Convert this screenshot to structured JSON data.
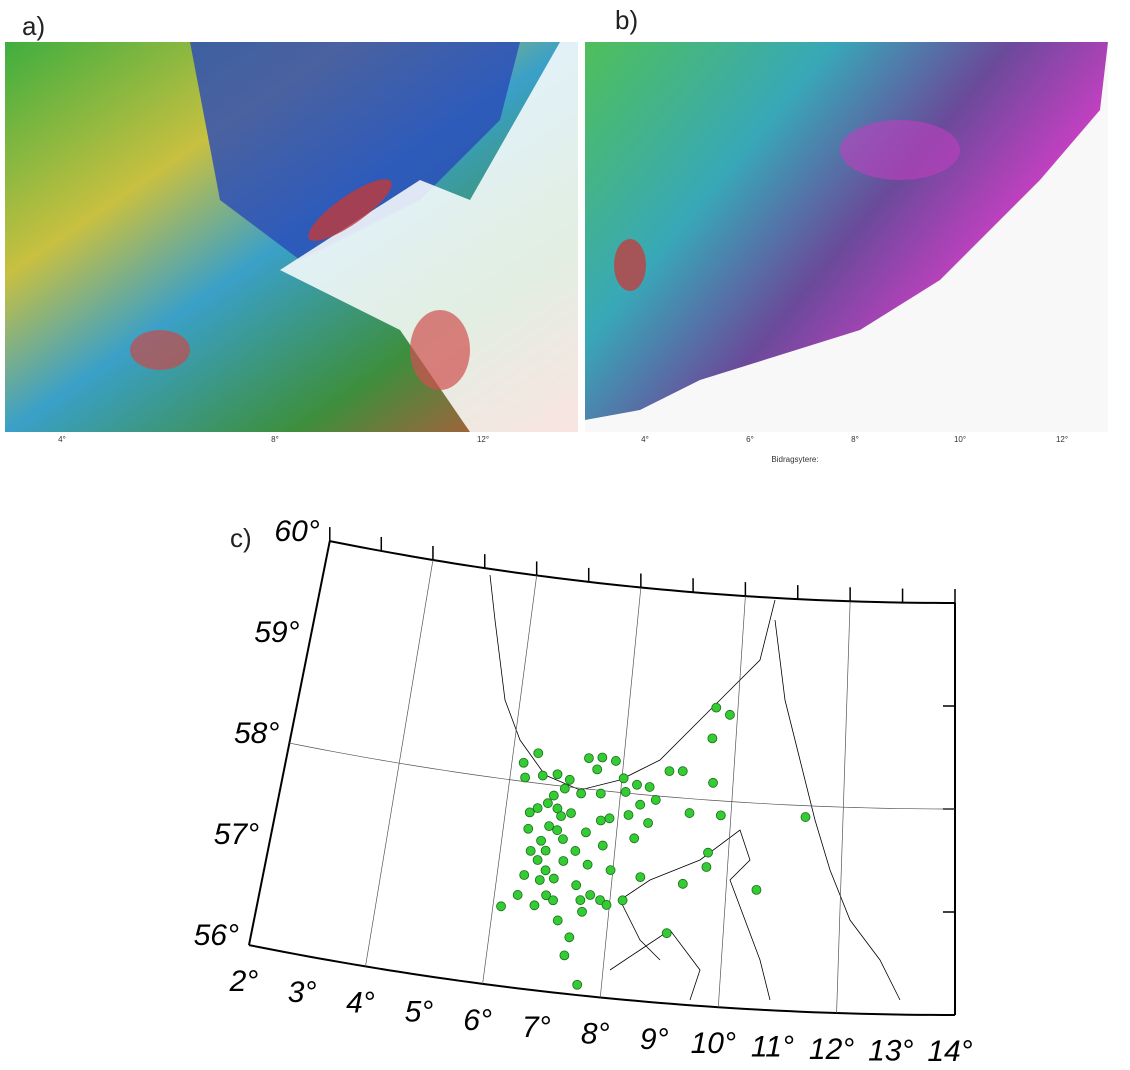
{
  "panels": [
    {
      "label": "a)",
      "ticks": [
        "4°",
        "8°",
        "12°"
      ]
    },
    {
      "label": "b)",
      "ticks": [
        "4°",
        "6°",
        "8°",
        "10°",
        "12°"
      ],
      "caption": "Bidragsytere:"
    }
  ],
  "chart_data": {
    "type": "scatter",
    "panel_label": "c)",
    "color": "#33cc33",
    "x": [
      6.45,
      6.21,
      6.27,
      6.58,
      6.84,
      7.37,
      7.61,
      7.54,
      7.86,
      8.03,
      7.07,
      7.0,
      6.82,
      7.3,
      7.65,
      8.09,
      8.28,
      8.51,
      8.84,
      9.08,
      8.64,
      8.37,
      6.43,
      6.73,
      6.91,
      6.99,
      6.8,
      6.95,
      7.07,
      6.69,
      6.44,
      6.79,
      6.67,
      6.83,
      6.99,
      6.75,
      7.12,
      7.31,
      7.46,
      7.7,
      7.85,
      8.18,
      8.54,
      8.32,
      7.78,
      7.55,
      6.89,
      6.71,
      6.4,
      6.14,
      7.02,
      7.39,
      7.65,
      7.83,
      8.22,
      8.49,
      9.24,
      9.63,
      9.64,
      9.26,
      9.82,
      9.57,
      9.6,
      9.86,
      9.64,
      7.96,
      9.03,
      7.37,
      7.32,
      7.59,
      10.53,
      11.33,
      6.53,
      6.47,
      7.54,
      7.95,
      7.14,
      7.49,
      6.56,
      7.16
    ],
    "values": [
      58.29,
      58.18,
      58.04,
      58.08,
      58.11,
      58.3,
      58.32,
      58.2,
      58.3,
      58.14,
      58.07,
      57.98,
      57.9,
      57.95,
      57.97,
      58.01,
      58.09,
      58.08,
      58.25,
      58.26,
      57.96,
      57.9,
      57.71,
      57.82,
      57.78,
      57.71,
      57.6,
      57.57,
      57.49,
      57.45,
      57.55,
      57.36,
      57.26,
      57.17,
      57.1,
      57.07,
      57.28,
      57.39,
      57.58,
      57.71,
      57.74,
      57.79,
      57.73,
      57.57,
      57.47,
      57.27,
      56.93,
      56.82,
      56.9,
      56.77,
      56.89,
      57.06,
      56.98,
      56.94,
      56.96,
      57.2,
      57.17,
      57.35,
      57.49,
      57.86,
      57.86,
      58.6,
      58.9,
      58.84,
      58.17,
      57.24,
      56.68,
      56.55,
      56.37,
      56.1,
      57.16,
      57.89,
      57.34,
      57.1,
      56.81,
      56.9,
      56.7,
      56.92,
      57.76,
      57.75
    ],
    "xlim": [
      2,
      14
    ],
    "ylim": [
      56,
      60
    ],
    "xticks": [
      {
        "value": 2,
        "label": "2°"
      },
      {
        "value": 3,
        "label": "3°"
      },
      {
        "value": 4,
        "label": "4°"
      },
      {
        "value": 5,
        "label": "5°"
      },
      {
        "value": 6,
        "label": "6°"
      },
      {
        "value": 7,
        "label": "7°"
      },
      {
        "value": 8,
        "label": "8°"
      },
      {
        "value": 9,
        "label": "9°"
      },
      {
        "value": 10,
        "label": "10°"
      },
      {
        "value": 11,
        "label": "11°"
      },
      {
        "value": 12,
        "label": "12°"
      },
      {
        "value": 13,
        "label": "13°"
      },
      {
        "value": 14,
        "label": "14°"
      }
    ],
    "yticks": [
      {
        "value": 56,
        "label": "56°"
      },
      {
        "value": 57,
        "label": "57°"
      },
      {
        "value": 58,
        "label": "58°"
      },
      {
        "value": 59,
        "label": "59°"
      },
      {
        "value": 60,
        "label": "60°"
      }
    ],
    "grid": true
  }
}
